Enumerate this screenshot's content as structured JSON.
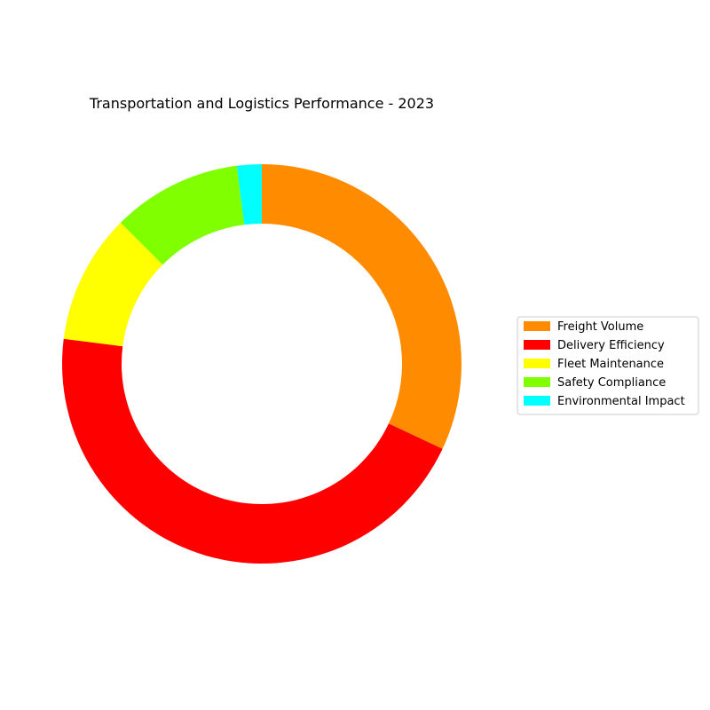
{
  "chart_data": {
    "type": "pie",
    "variant": "donut",
    "title": "Transportation and Logistics Performance - 2023",
    "categories": [
      "Freight Volume",
      "Delivery Efficiency",
      "Fleet Maintenance",
      "Safety Compliance",
      "Environmental Impact"
    ],
    "values": [
      32,
      45,
      10.5,
      10.5,
      2
    ],
    "value_unit": "percent of total (estimated from slice angles)",
    "colors": [
      "#ff8c00",
      "#ff0000",
      "#ffff00",
      "#7fff00",
      "#00ffff"
    ],
    "start_angle_deg": 90,
    "direction": "clockwise",
    "legend": {
      "placement": "center-right",
      "entries": [
        "Freight Volume",
        "Delivery Efficiency",
        "Fleet Maintenance",
        "Safety Compliance",
        "Environmental Impact"
      ]
    }
  }
}
